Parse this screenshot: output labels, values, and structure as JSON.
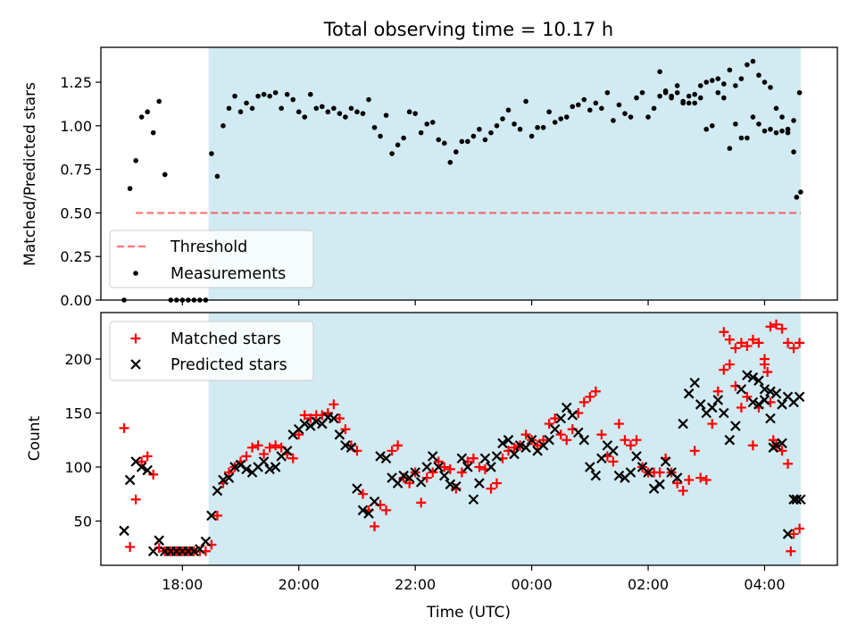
{
  "figure": {
    "title": "Total observing time = 10.17 h",
    "xlabel": "Time (UTC)",
    "colors": {
      "shade": "#add8e6",
      "threshold": "#ff0000",
      "measurement": "#000000",
      "matched": "#ff0000",
      "predicted": "#000000"
    },
    "x_tick_labels": [
      "18:00",
      "20:00",
      "22:00",
      "00:00",
      "02:00",
      "04:00"
    ]
  },
  "chart_data": [
    {
      "type": "scatter",
      "title": "Total observing time = 10.17 h",
      "ylabel": "Matched/Predicted stars",
      "xlim": [
        16.6,
        29.25
      ],
      "ylim": [
        0,
        1.45
      ],
      "x_unit": "hours UTC (values past 24 are after midnight)",
      "y_ticks": [
        0.0,
        0.25,
        0.5,
        0.75,
        1.0,
        1.25
      ],
      "y_tick_labels": [
        "0.00",
        "0.25",
        "0.50",
        "0.75",
        "1.00",
        "1.25"
      ],
      "legend_position": "lower-left",
      "legend": [
        "Threshold",
        "Measurements"
      ],
      "observing_window": [
        18.45,
        28.62
      ],
      "threshold": {
        "name": "Threshold",
        "value": 0.5,
        "x_range": [
          17.2,
          28.62
        ],
        "style": "dashed"
      },
      "series": [
        {
          "name": "Measurements",
          "x": [
            17.0,
            17.1,
            17.2,
            17.3,
            17.4,
            17.5,
            17.6,
            17.7,
            17.8,
            17.9,
            18.0,
            18.1,
            18.2,
            18.3,
            18.4,
            18.5,
            18.6,
            18.7,
            18.8,
            18.9,
            19.0,
            19.1,
            19.2,
            19.3,
            19.4,
            19.5,
            19.6,
            19.7,
            19.8,
            19.9,
            20.0,
            20.1,
            20.2,
            20.3,
            20.4,
            20.5,
            20.6,
            20.7,
            20.8,
            20.9,
            21.0,
            21.1,
            21.2,
            21.3,
            21.4,
            21.5,
            21.6,
            21.7,
            21.8,
            21.9,
            22.0,
            22.1,
            22.2,
            22.3,
            22.4,
            22.5,
            22.6,
            22.7,
            22.8,
            22.9,
            23.0,
            23.1,
            23.2,
            23.3,
            23.4,
            23.5,
            23.6,
            23.7,
            23.8,
            23.9,
            24.0,
            24.1,
            24.2,
            24.3,
            24.4,
            24.5,
            24.6,
            24.7,
            24.8,
            24.9,
            25.0,
            25.1,
            25.2,
            25.3,
            25.4,
            25.5,
            25.6,
            25.7,
            25.8,
            25.9,
            26.0,
            26.1,
            26.2,
            26.3,
            26.4,
            26.5,
            26.6,
            26.7,
            26.8,
            26.9,
            27.0,
            27.1,
            27.2,
            27.3,
            27.4,
            27.5,
            27.6,
            27.7,
            27.8,
            27.9,
            28.0,
            28.1,
            28.2,
            28.3,
            28.4,
            28.5,
            28.6
          ],
          "y": [
            0.0,
            0.64,
            0.8,
            1.05,
            1.08,
            0.96,
            1.14,
            0.72,
            0.0,
            0.0,
            0.0,
            0.0,
            0.0,
            0.0,
            0.0,
            0.84,
            0.71,
            1.0,
            1.1,
            1.17,
            1.08,
            1.13,
            1.1,
            1.17,
            1.18,
            1.17,
            1.19,
            1.1,
            1.18,
            1.15,
            1.08,
            1.05,
            1.18,
            1.1,
            1.11,
            1.08,
            1.1,
            1.07,
            1.05,
            1.1,
            1.08,
            1.07,
            1.15,
            0.99,
            0.94,
            1.06,
            0.84,
            0.89,
            0.93,
            1.08,
            1.07,
            0.96,
            1.01,
            1.02,
            0.92,
            0.9,
            0.79,
            0.85,
            0.91,
            0.91,
            0.94,
            0.98,
            0.92,
            0.96,
            1.0,
            1.04,
            1.09,
            1.01,
            0.98,
            1.14,
            0.94,
            0.99,
            0.99,
            1.08,
            1.02,
            1.04,
            1.05,
            1.11,
            1.12,
            1.15,
            1.09,
            1.13,
            1.1,
            1.19,
            1.03,
            1.12,
            1.07,
            1.05,
            1.16,
            1.19,
            1.05,
            1.1,
            1.31,
            1.2,
            1.17,
            1.19,
            1.14,
            1.13,
            1.18,
            1.16,
            0.98,
            1.0,
            1.19,
            1.16,
            0.87,
            1.01,
            0.93,
            0.93,
            1.05,
            1.01,
            0.97,
            0.98,
            0.96,
            0.97,
            0.98,
            1.03,
            1.19
          ],
          "x_late": [
            26.2,
            26.3,
            26.4,
            26.5,
            26.6,
            26.7,
            26.8,
            26.9,
            27.0,
            27.1,
            27.2,
            27.3,
            27.4,
            27.5,
            27.6,
            27.7,
            27.8,
            27.9,
            28.0,
            28.1,
            28.2,
            28.3,
            28.4,
            28.5,
            28.55,
            28.62
          ],
          "y_late": [
            1.17,
            1.19,
            1.16,
            1.23,
            1.13,
            1.17,
            1.13,
            1.23,
            1.25,
            1.26,
            1.27,
            1.24,
            1.32,
            1.23,
            1.27,
            1.35,
            1.37,
            1.29,
            1.25,
            1.22,
            1.1,
            1.05,
            0.96,
            0.85,
            0.59,
            0.62
          ]
        }
      ]
    },
    {
      "type": "scatter",
      "ylabel": "Count",
      "xlabel": "Time (UTC)",
      "xlim": [
        16.6,
        29.25
      ],
      "ylim": [
        9,
        243
      ],
      "y_ticks": [
        50,
        100,
        150,
        200
      ],
      "y_tick_labels": [
        "50",
        "100",
        "150",
        "200"
      ],
      "legend_position": "upper-left",
      "legend": [
        "Matched stars",
        "Predicted stars"
      ],
      "observing_window": [
        18.45,
        28.62
      ],
      "series": [
        {
          "name": "Matched stars",
          "marker": "+",
          "x": [
            17.0,
            17.1,
            17.2,
            17.3,
            17.4,
            17.5,
            17.6,
            17.7,
            17.8,
            17.9,
            18.0,
            18.1,
            18.2,
            18.3,
            18.4,
            18.5,
            18.6,
            18.7,
            18.8,
            18.9,
            19.0,
            19.1,
            19.2,
            19.3,
            19.4,
            19.5,
            19.6,
            19.7,
            19.8,
            19.9,
            20.0,
            20.1,
            20.2,
            20.3,
            20.4,
            20.5,
            20.6,
            20.7,
            20.8,
            20.9,
            21.0,
            21.1,
            21.2,
            21.3,
            21.4,
            21.5,
            21.6,
            21.7,
            21.8,
            21.9,
            22.0,
            22.1,
            22.2,
            22.3,
            22.4,
            22.5,
            22.6,
            22.7,
            22.8,
            22.9,
            23.0,
            23.1,
            23.2,
            23.3,
            23.4,
            23.5,
            23.6,
            23.7,
            23.8,
            23.9,
            24.0,
            24.1,
            24.2,
            24.3,
            24.4,
            24.5,
            24.6,
            24.7,
            24.8,
            24.9,
            25.0,
            25.1,
            25.2,
            25.3,
            25.4,
            25.5,
            25.6,
            25.7,
            25.8,
            25.9,
            26.0,
            26.1,
            26.2,
            26.3,
            26.4,
            26.5,
            26.6,
            26.7,
            26.8,
            26.9,
            27.0,
            27.1,
            27.2,
            27.3,
            27.4,
            27.5,
            27.6,
            27.7,
            27.8,
            27.9,
            28.0,
            28.1,
            28.2,
            28.3,
            28.4,
            28.5,
            28.6
          ],
          "y": [
            136,
            26,
            70,
            105,
            110,
            93,
            25,
            22,
            22,
            22,
            22,
            22,
            22,
            22,
            22,
            28,
            55,
            85,
            95,
            100,
            105,
            110,
            118,
            120,
            112,
            118,
            120,
            118,
            112,
            108,
            130,
            148,
            145,
            148,
            148,
            150,
            158,
            145,
            135,
            120,
            115,
            75,
            60,
            45,
            65,
            60,
            115,
            120,
            90,
            85,
            95,
            67,
            90,
            95,
            105,
            100,
            98,
            80,
            95,
            105,
            108,
            100,
            98,
            80,
            85,
            108,
            115,
            118,
            120,
            130,
            125,
            120,
            125,
            140,
            145,
            130,
            125,
            135,
            150,
            160,
            165,
            170,
            130,
            110,
            105,
            140,
            125,
            120,
            125,
            100,
            95,
            95,
            95,
            108,
            95,
            85,
            78,
            88,
            115,
            90,
            88,
            140,
            170,
            190,
            195,
            175,
            155,
            165,
            120,
            155,
            200,
            230,
            232,
            228,
            215,
            210,
            215
          ],
          "x_late": [
            27.3,
            27.4,
            27.5,
            27.6,
            27.7,
            27.8,
            27.9,
            28.0,
            28.05,
            28.1,
            28.15,
            28.2,
            28.3,
            28.4,
            28.45,
            28.5,
            28.6
          ],
          "y_late": [
            225,
            218,
            210,
            215,
            212,
            218,
            215,
            195,
            188,
            160,
            125,
            120,
            115,
            103,
            22,
            38,
            43
          ]
        },
        {
          "name": "Predicted stars",
          "marker": "x",
          "x": [
            17.0,
            17.1,
            17.2,
            17.3,
            17.4,
            17.5,
            17.6,
            17.7,
            17.8,
            17.9,
            18.0,
            18.1,
            18.2,
            18.3,
            18.4,
            18.5,
            18.6,
            18.7,
            18.8,
            18.9,
            19.0,
            19.1,
            19.2,
            19.3,
            19.4,
            19.5,
            19.6,
            19.7,
            19.8,
            19.9,
            20.0,
            20.1,
            20.2,
            20.3,
            20.4,
            20.5,
            20.6,
            20.7,
            20.8,
            20.9,
            21.0,
            21.1,
            21.2,
            21.3,
            21.4,
            21.5,
            21.6,
            21.7,
            21.8,
            21.9,
            22.0,
            22.1,
            22.2,
            22.3,
            22.4,
            22.5,
            22.6,
            22.7,
            22.8,
            22.9,
            23.0,
            23.1,
            23.2,
            23.3,
            23.4,
            23.5,
            23.6,
            23.7,
            23.8,
            23.9,
            24.0,
            24.1,
            24.2,
            24.3,
            24.4,
            24.5,
            24.6,
            24.7,
            24.8,
            24.9,
            25.0,
            25.1,
            25.2,
            25.3,
            25.4,
            25.5,
            25.6,
            25.7,
            25.8,
            25.9,
            26.0,
            26.1,
            26.2,
            26.3,
            26.4,
            26.5,
            26.6,
            26.7,
            26.8,
            26.9,
            27.0,
            27.1,
            27.2,
            27.3,
            27.4,
            27.5,
            27.6,
            27.7,
            27.8,
            27.9,
            28.0,
            28.1,
            28.2,
            28.3,
            28.4,
            28.5,
            28.6
          ],
          "y": [
            41,
            88,
            105,
            100,
            97,
            22,
            32,
            22,
            22,
            22,
            22,
            22,
            22,
            24,
            31,
            55,
            78,
            88,
            90,
            100,
            102,
            98,
            95,
            100,
            105,
            98,
            100,
            110,
            115,
            130,
            135,
            140,
            138,
            142,
            140,
            146,
            145,
            130,
            120,
            118,
            80,
            60,
            57,
            68,
            110,
            108,
            90,
            85,
            92,
            90,
            95,
            86,
            100,
            110,
            100,
            92,
            84,
            82,
            108,
            100,
            70,
            85,
            108,
            100,
            110,
            122,
            125,
            112,
            120,
            118,
            125,
            115,
            120,
            125,
            135,
            145,
            155,
            148,
            132,
            125,
            100,
            92,
            108,
            120,
            115,
            92,
            90,
            95,
            110,
            100,
            95,
            80,
            84,
            105,
            95,
            90,
            140,
            168,
            178,
            158,
            150,
            155,
            162,
            150,
            125,
            138,
            172,
            185,
            183,
            180,
            172,
            170,
            168,
            158,
            165,
            160,
            165
          ],
          "x_late": [
            27.8,
            27.9,
            28.0,
            28.1,
            28.15,
            28.2,
            28.3,
            28.4,
            28.5,
            28.55,
            28.62
          ],
          "y_late": [
            160,
            158,
            162,
            145,
            118,
            120,
            122,
            38,
            70,
            70,
            70
          ]
        }
      ]
    }
  ]
}
